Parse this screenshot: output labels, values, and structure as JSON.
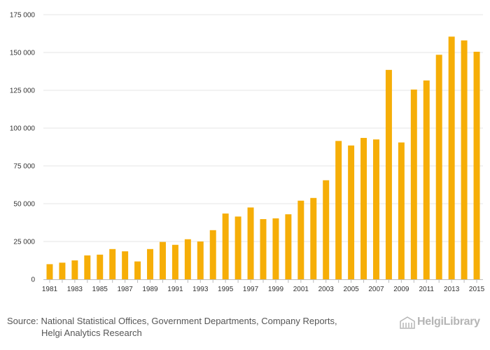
{
  "chart_data": {
    "type": "bar",
    "title": "",
    "xlabel": "",
    "ylabel": "",
    "ylim": [
      0,
      175000
    ],
    "yticks": [
      0,
      25000,
      50000,
      75000,
      100000,
      125000,
      150000,
      175000
    ],
    "ytick_labels": [
      "0",
      "25 000",
      "50 000",
      "75 000",
      "100 000",
      "125 000",
      "150 000",
      "175 000"
    ],
    "categories": [
      "1981",
      "1982",
      "1983",
      "1984",
      "1985",
      "1986",
      "1987",
      "1988",
      "1989",
      "1990",
      "1991",
      "1992",
      "1993",
      "1994",
      "1995",
      "1996",
      "1997",
      "1998",
      "1999",
      "2000",
      "2001",
      "2002",
      "2003",
      "2004",
      "2005",
      "2006",
      "2007",
      "2008",
      "2009",
      "2010",
      "2011",
      "2012",
      "2013",
      "2014",
      "2015"
    ],
    "xtick_labels": [
      "1981",
      "1983",
      "1985",
      "1987",
      "1989",
      "1991",
      "1993",
      "1995",
      "1997",
      "1999",
      "2001",
      "2003",
      "2005",
      "2007",
      "2009",
      "2011",
      "2013",
      "2015"
    ],
    "values": [
      10000,
      11000,
      12500,
      15800,
      16300,
      20000,
      18500,
      11800,
      20000,
      24700,
      22800,
      26500,
      25000,
      32500,
      43500,
      41500,
      47500,
      39800,
      40300,
      43000,
      52000,
      53800,
      65500,
      91500,
      88500,
      93500,
      92500,
      138500,
      90500,
      125500,
      131500,
      148500,
      160500,
      158000,
      150500
    ],
    "grid": true,
    "legend": "none",
    "bar_color": "#f6ae07",
    "grid_color": "#e6e6e6",
    "axis_color": "#bbbbbb"
  },
  "footer": {
    "source_label": "Source:",
    "source_line1": "National Statistical Offices, Government Departments, Company Reports,",
    "source_line2": "Helgi Analytics Research"
  },
  "logo": {
    "text": "HelgiLibrary",
    "icon": "library-building-icon"
  }
}
